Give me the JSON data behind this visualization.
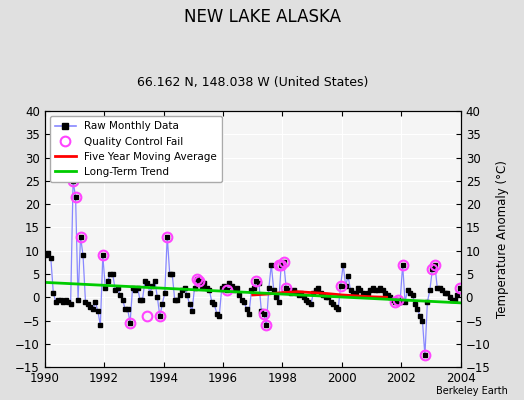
{
  "title": "NEW LAKE ALASKA",
  "subtitle": "66.162 N, 148.038 W (United States)",
  "ylabel_right": "Temperature Anomaly (°C)",
  "watermark": "Berkeley Earth",
  "xlim": [
    1990,
    2004
  ],
  "ylim": [
    -15,
    40
  ],
  "yticks": [
    -15,
    -10,
    -5,
    0,
    5,
    10,
    15,
    20,
    25,
    30,
    35,
    40
  ],
  "xticks": [
    1990,
    1992,
    1994,
    1996,
    1998,
    2000,
    2002,
    2004
  ],
  "bg_color": "#e0e0e0",
  "plot_bg_color": "#f5f5f5",
  "raw_line_color": "#8888ff",
  "raw_dot_color": "#000000",
  "qc_fail_color": "#ff44ff",
  "moving_avg_color": "#ff0000",
  "trend_color": "#00cc00",
  "raw_data_x": [
    1990.042,
    1990.125,
    1990.208,
    1990.292,
    1990.375,
    1990.458,
    1990.542,
    1990.625,
    1990.708,
    1990.792,
    1990.875,
    1990.958,
    1991.042,
    1991.125,
    1991.208,
    1991.292,
    1991.375,
    1991.458,
    1991.542,
    1991.625,
    1991.708,
    1991.792,
    1991.875,
    1991.958,
    1992.042,
    1992.125,
    1992.208,
    1992.292,
    1992.375,
    1992.458,
    1992.542,
    1992.625,
    1992.708,
    1992.792,
    1992.875,
    1992.958,
    1993.042,
    1993.125,
    1993.208,
    1993.292,
    1993.375,
    1993.458,
    1993.542,
    1993.625,
    1993.708,
    1993.792,
    1993.875,
    1993.958,
    1994.042,
    1994.125,
    1994.208,
    1994.292,
    1994.375,
    1994.458,
    1994.542,
    1994.625,
    1994.708,
    1994.792,
    1994.875,
    1994.958,
    1995.042,
    1995.125,
    1995.208,
    1995.292,
    1995.375,
    1995.458,
    1995.542,
    1995.625,
    1995.708,
    1995.792,
    1995.875,
    1995.958,
    1996.042,
    1996.125,
    1996.208,
    1996.292,
    1996.375,
    1996.458,
    1996.542,
    1996.625,
    1996.708,
    1996.792,
    1996.875,
    1996.958,
    1997.042,
    1997.125,
    1997.208,
    1997.292,
    1997.375,
    1997.458,
    1997.542,
    1997.625,
    1997.708,
    1997.792,
    1997.875,
    1997.958,
    1998.042,
    1998.125,
    1998.208,
    1998.292,
    1998.375,
    1998.458,
    1998.542,
    1998.625,
    1998.708,
    1998.792,
    1998.875,
    1998.958,
    1999.042,
    1999.125,
    1999.208,
    1999.292,
    1999.375,
    1999.458,
    1999.542,
    1999.625,
    1999.708,
    1999.792,
    1999.875,
    1999.958,
    2000.042,
    2000.125,
    2000.208,
    2000.292,
    2000.375,
    2000.458,
    2000.542,
    2000.625,
    2000.708,
    2000.792,
    2000.875,
    2000.958,
    2001.042,
    2001.125,
    2001.208,
    2001.292,
    2001.375,
    2001.458,
    2001.542,
    2001.625,
    2001.708,
    2001.792,
    2001.875,
    2001.958,
    2002.042,
    2002.125,
    2002.208,
    2002.292,
    2002.375,
    2002.458,
    2002.542,
    2002.625,
    2002.708,
    2002.792,
    2002.875,
    2002.958,
    2003.042,
    2003.125,
    2003.208,
    2003.292,
    2003.375,
    2003.458,
    2003.542,
    2003.625,
    2003.708,
    2003.792,
    2003.875,
    2003.958
  ],
  "raw_data_y": [
    9.0,
    9.5,
    8.5,
    1.0,
    -1.0,
    -0.5,
    -0.5,
    -1.0,
    -0.5,
    -1.0,
    -1.5,
    25.0,
    21.5,
    -0.5,
    13.0,
    9.0,
    -1.0,
    -1.5,
    -2.0,
    -2.5,
    -1.0,
    -3.0,
    -6.0,
    9.0,
    2.0,
    3.5,
    5.0,
    5.0,
    1.5,
    2.0,
    0.5,
    -0.5,
    -2.5,
    -2.5,
    -5.5,
    2.0,
    1.5,
    2.0,
    -0.5,
    -0.5,
    3.5,
    3.0,
    1.0,
    2.5,
    3.5,
    0.0,
    -4.0,
    -1.5,
    1.0,
    13.0,
    5.0,
    5.0,
    -0.5,
    -0.5,
    0.5,
    1.5,
    2.0,
    0.5,
    -1.5,
    -3.0,
    2.0,
    4.0,
    3.5,
    2.5,
    3.0,
    2.0,
    1.5,
    -1.0,
    -1.5,
    -3.5,
    -4.0,
    2.0,
    2.5,
    1.5,
    3.0,
    2.5,
    1.5,
    2.0,
    0.5,
    -0.5,
    -1.0,
    -2.5,
    -3.5,
    1.5,
    2.0,
    3.5,
    3.0,
    -3.0,
    -3.5,
    -6.0,
    2.0,
    7.0,
    1.5,
    0.0,
    -1.0,
    7.0,
    7.5,
    2.0,
    1.5,
    1.0,
    1.5,
    1.0,
    0.5,
    1.0,
    0.0,
    -0.5,
    -1.0,
    -1.5,
    1.0,
    1.5,
    2.0,
    1.0,
    0.5,
    0.0,
    0.0,
    -1.0,
    -1.5,
    -2.0,
    -2.5,
    2.5,
    7.0,
    2.5,
    4.5,
    1.5,
    1.0,
    1.0,
    2.0,
    1.5,
    1.0,
    0.5,
    1.0,
    1.5,
    2.0,
    1.5,
    1.5,
    2.0,
    1.5,
    1.0,
    0.5,
    0.0,
    -0.5,
    -1.0,
    -0.5,
    -1.0,
    7.0,
    -1.0,
    1.5,
    1.0,
    0.5,
    -1.5,
    -2.5,
    -4.0,
    -5.0,
    -12.5,
    -1.0,
    1.5,
    6.0,
    7.0,
    2.0,
    2.0,
    1.5,
    1.0,
    1.0,
    0.0,
    -0.5,
    -0.5,
    0.5,
    2.0
  ],
  "qc_fail_x": [
    1990.958,
    1991.042,
    1991.208,
    1991.958,
    1992.875,
    1993.458,
    1993.875,
    1994.125,
    1995.125,
    1995.208,
    1996.125,
    1997.125,
    1997.375,
    1997.458,
    1997.875,
    1997.958,
    1998.042,
    1998.125,
    1999.958,
    2001.792,
    2001.875,
    2002.042,
    2002.792,
    2003.042,
    2003.125,
    2003.958
  ],
  "qc_fail_y": [
    25.0,
    21.5,
    13.0,
    9.0,
    -5.5,
    -4.0,
    -4.0,
    13.0,
    4.0,
    3.5,
    1.5,
    3.5,
    -3.5,
    -6.0,
    7.0,
    7.0,
    7.5,
    2.0,
    2.5,
    -1.0,
    -0.5,
    7.0,
    -12.5,
    6.0,
    7.0,
    2.0
  ],
  "moving_avg_x": [
    1997.0,
    1997.5,
    1998.0,
    1998.5,
    1999.0,
    1999.5,
    2000.0,
    2000.5,
    2001.0,
    2001.5
  ],
  "moving_avg_y": [
    0.5,
    0.7,
    1.0,
    1.2,
    1.0,
    0.8,
    0.5,
    0.3,
    0.1,
    0.0
  ],
  "trend_x": [
    1990.0,
    2004.0
  ],
  "trend_y": [
    3.2,
    -1.2
  ]
}
